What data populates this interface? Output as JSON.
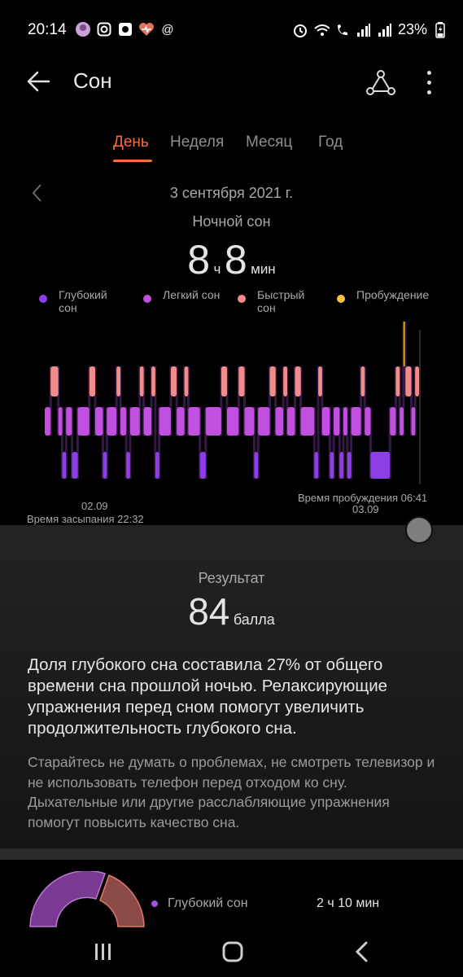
{
  "status_bar": {
    "time": "20:14",
    "battery": "23%",
    "left_icons": [
      "avatar-icon",
      "instagram-icon",
      "camera-app-icon",
      "heart-rate-icon",
      "at-icon"
    ],
    "right_icons": [
      "alarm-icon",
      "wifi-icon",
      "wifi-call-icon",
      "signal-icon",
      "signal-icon",
      "battery-charging-icon"
    ]
  },
  "app_bar": {
    "title": "Сон"
  },
  "tabs": [
    {
      "label": "День",
      "active": true
    },
    {
      "label": "Неделя",
      "active": false
    },
    {
      "label": "Месяц",
      "active": false
    },
    {
      "label": "Год",
      "active": false
    }
  ],
  "date": "3 сентября 2021 г.",
  "night_sleep": {
    "label": "Ночной сон",
    "hours": "8",
    "hours_unit": "ч",
    "minutes": "8",
    "minutes_unit": "мин"
  },
  "legend": [
    {
      "label": "Глубокий сон",
      "color": "#8c3fe6"
    },
    {
      "label": "Легкий сон",
      "color": "#c14fe0"
    },
    {
      "label": "Быстрый сон",
      "color": "#f28c8a"
    },
    {
      "label": "Пробуждение",
      "color": "#f7c23c"
    }
  ],
  "chart": {
    "start_date": "02.09",
    "start_label": "Время засыпания 22:32",
    "end_date": "03.09",
    "end_label": "Время пробуждения 06:41",
    "colors": {
      "deep": "#8c3fe6",
      "light": "#c14fe0",
      "rem": "#f28c8a",
      "awake": "#f7c23c"
    },
    "stages": [
      [
        "light",
        3
      ],
      [
        "rem",
        4
      ],
      [
        "light",
        2
      ],
      [
        "deep",
        2
      ],
      [
        "light",
        3
      ],
      [
        "deep",
        3
      ],
      [
        "light",
        6
      ],
      [
        "rem",
        3
      ],
      [
        "light",
        4
      ],
      [
        "deep",
        2
      ],
      [
        "light",
        5
      ],
      [
        "rem",
        2
      ],
      [
        "light",
        3
      ],
      [
        "deep",
        2
      ],
      [
        "light",
        5
      ],
      [
        "rem",
        2
      ],
      [
        "light",
        4
      ],
      [
        "rem",
        2
      ],
      [
        "deep",
        2
      ],
      [
        "light",
        6
      ],
      [
        "rem",
        3
      ],
      [
        "light",
        4
      ],
      [
        "rem",
        2
      ],
      [
        "light",
        6
      ],
      [
        "deep",
        3
      ],
      [
        "light",
        8
      ],
      [
        "rem",
        3
      ],
      [
        "light",
        6
      ],
      [
        "rem",
        3
      ],
      [
        "light",
        5
      ],
      [
        "deep",
        2
      ],
      [
        "light",
        6
      ],
      [
        "rem",
        3
      ],
      [
        "light",
        4
      ],
      [
        "rem",
        2
      ],
      [
        "light",
        4
      ],
      [
        "rem",
        3
      ],
      [
        "light",
        7
      ],
      [
        "deep",
        2
      ],
      [
        "rem",
        2
      ],
      [
        "light",
        4
      ],
      [
        "deep",
        2
      ],
      [
        "light",
        3
      ],
      [
        "deep",
        2
      ],
      [
        "light",
        2
      ],
      [
        "deep",
        2
      ],
      [
        "light",
        5
      ],
      [
        "rem",
        2
      ],
      [
        "light",
        3
      ],
      [
        "deep",
        10
      ],
      [
        "light",
        3
      ],
      [
        "rem",
        2
      ],
      [
        "light",
        2
      ],
      [
        "awake",
        1
      ],
      [
        "rem",
        3
      ],
      [
        "light",
        2
      ],
      [
        "rem",
        2
      ]
    ]
  },
  "result": {
    "label": "Результат",
    "score": "84",
    "unit": "балла"
  },
  "advice_main": "Доля глубокого сна составила 27% от общего времени сна прошлой ночью. Релаксирующие упражнения перед сном помогут увеличить продолжительность глубокого сна.",
  "advice_sub": "Старайтесь не думать о проблемах, не смотреть телевизор и не использовать телефон перед отходом ко сну. Дыхательные или другие расслабляющие упражнения помогут повысить качество сна.",
  "breakdown": {
    "label": "Глубокий сон",
    "value": "2 ч 10 мин",
    "color": "#a34fe3"
  },
  "nav": [
    "recents-icon",
    "home-icon",
    "back-icon"
  ]
}
